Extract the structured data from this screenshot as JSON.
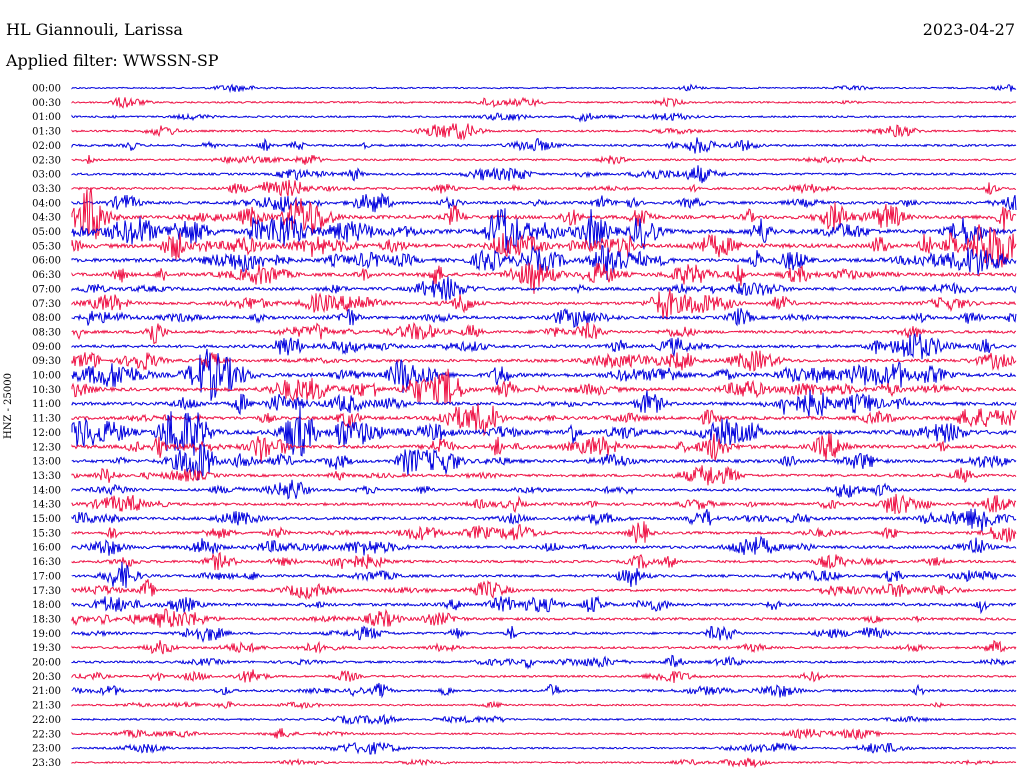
{
  "header": {
    "station": "HL Giannouli, Larissa",
    "date": "2023-04-27",
    "filter": "Applied filter: WWSSN-SP"
  },
  "chart_data": {
    "type": "line",
    "title": "HL Giannouli, Larissa",
    "ylabel": "HNZ - 25000",
    "row_labels": [
      "00:00",
      "00:30",
      "01:00",
      "01:30",
      "02:00",
      "02:30",
      "03:00",
      "03:30",
      "04:00",
      "04:30",
      "05:00",
      "05:30",
      "06:00",
      "06:30",
      "07:00",
      "07:30",
      "08:00",
      "08:30",
      "09:00",
      "09:30",
      "10:00",
      "10:30",
      "11:00",
      "11:30",
      "12:00",
      "12:30",
      "13:00",
      "13:30",
      "14:00",
      "14:30",
      "15:00",
      "15:30",
      "16:00",
      "16:30",
      "17:00",
      "17:30",
      "18:00",
      "18:30",
      "19:00",
      "19:30",
      "20:00",
      "20:30",
      "21:00",
      "21:30",
      "22:00",
      "22:30",
      "23:00",
      "23:30"
    ],
    "series_colors": [
      "#0000dd",
      "#ee1144"
    ],
    "activity_level": [
      0.05,
      0.15,
      0.15,
      0.2,
      0.3,
      0.2,
      0.3,
      0.35,
      0.5,
      0.75,
      0.95,
      0.9,
      0.8,
      0.7,
      0.6,
      0.55,
      0.55,
      0.5,
      0.55,
      0.55,
      0.85,
      0.7,
      0.65,
      0.65,
      0.9,
      0.75,
      0.6,
      0.45,
      0.45,
      0.5,
      0.55,
      0.45,
      0.55,
      0.4,
      0.4,
      0.4,
      0.55,
      0.45,
      0.35,
      0.3,
      0.3,
      0.25,
      0.35,
      0.15,
      0.15,
      0.15,
      0.15,
      0.12
    ]
  }
}
